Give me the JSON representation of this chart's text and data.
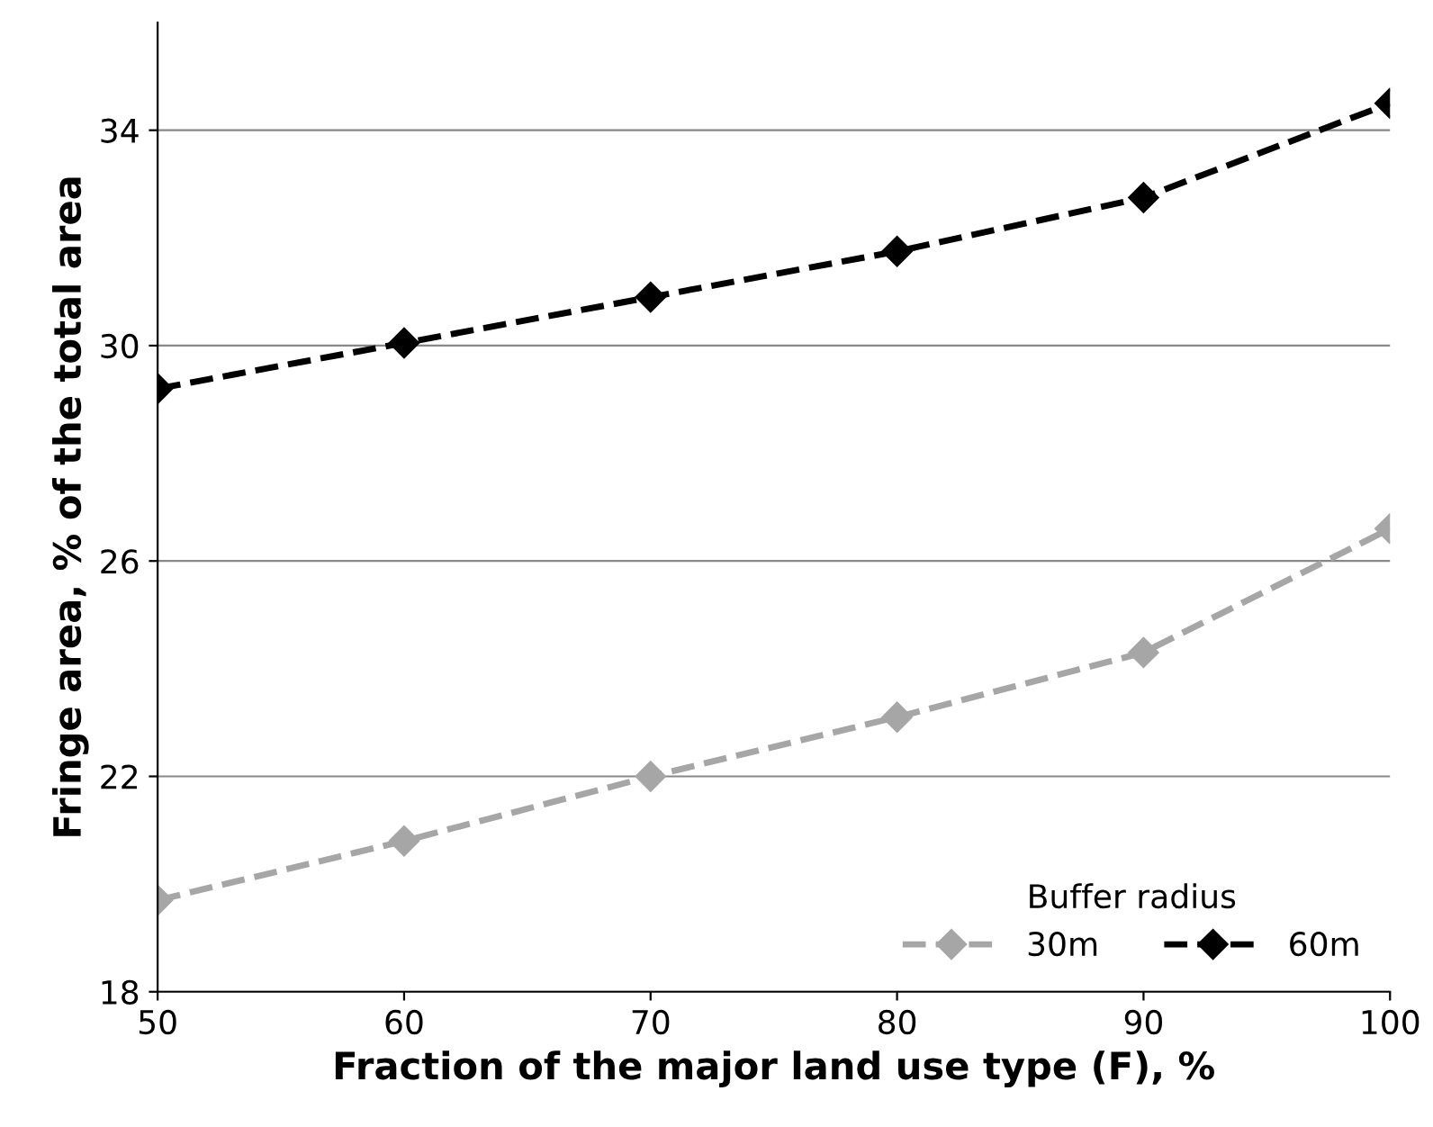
{
  "chart_data": {
    "type": "line",
    "xlabel": "Fraction of the major land use type (F), %",
    "ylabel": "Fringe area, % of the total area",
    "legend_title": "Buffer radius",
    "x": [
      50,
      60,
      70,
      80,
      90,
      100
    ],
    "series": [
      {
        "name": "30m",
        "color": "#a6a6a6",
        "values": [
          19.7,
          20.8,
          22.0,
          23.1,
          24.3,
          26.6
        ]
      },
      {
        "name": "60m",
        "color": "#000000",
        "values": [
          29.2,
          30.05,
          30.9,
          31.75,
          32.75,
          34.5
        ]
      }
    ],
    "xlim": [
      50,
      100
    ],
    "xticks": [
      50,
      60,
      70,
      80,
      90,
      100
    ],
    "ylim": [
      18,
      36
    ],
    "yticks": [
      18,
      22,
      26,
      30,
      34
    ],
    "grid": "y",
    "legend": "bottom right",
    "marker": "diamond",
    "line_style": "dashed"
  }
}
